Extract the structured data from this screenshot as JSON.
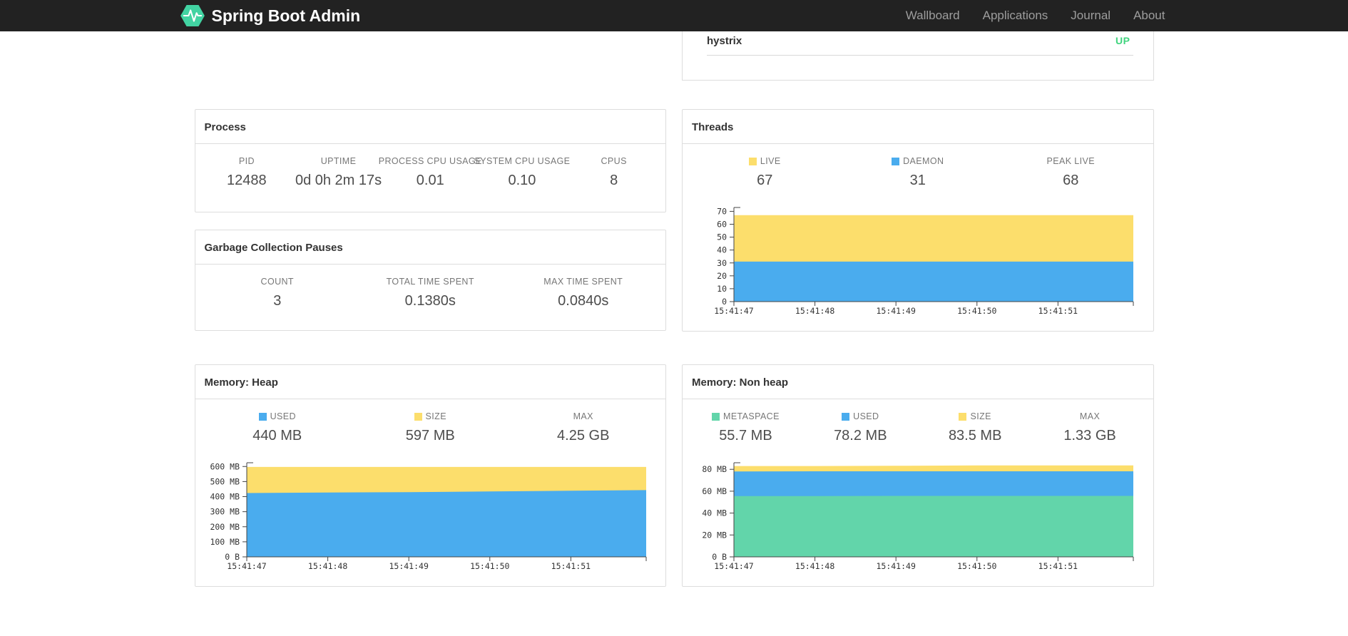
{
  "navbar": {
    "brand": "Spring Boot Admin",
    "items": [
      {
        "label": "Wallboard"
      },
      {
        "label": "Applications"
      },
      {
        "label": "Journal"
      },
      {
        "label": "About"
      }
    ]
  },
  "status_card": {
    "application": "hystrix",
    "status": "UP",
    "status_color": "#40d47e"
  },
  "cards": {
    "process": {
      "title": "Process",
      "stats": [
        {
          "label": "PID",
          "value": "12488"
        },
        {
          "label": "UPTIME",
          "value": "0d 0h 2m 17s"
        },
        {
          "label": "PROCESS CPU USAGE",
          "value": "0.01"
        },
        {
          "label": "SYSTEM CPU USAGE",
          "value": "0.10"
        },
        {
          "label": "CPUS",
          "value": "8"
        }
      ]
    },
    "gc": {
      "title": "Garbage Collection Pauses",
      "stats": [
        {
          "label": "COUNT",
          "value": "3"
        },
        {
          "label": "TOTAL TIME SPENT",
          "value": "0.1380s"
        },
        {
          "label": "MAX TIME SPENT",
          "value": "0.0840s"
        }
      ]
    },
    "threads": {
      "title": "Threads",
      "stats": [
        {
          "label": "LIVE",
          "value": "67",
          "color": "#fcde6c"
        },
        {
          "label": "DAEMON",
          "value": "31",
          "color": "#4aacee"
        },
        {
          "label": "PEAK LIVE",
          "value": "68"
        }
      ]
    },
    "heap": {
      "title": "Memory: Heap",
      "stats": [
        {
          "label": "USED",
          "value": "440 MB",
          "color": "#4aacee"
        },
        {
          "label": "SIZE",
          "value": "597 MB",
          "color": "#fcde6c"
        },
        {
          "label": "MAX",
          "value": "4.25 GB"
        }
      ]
    },
    "nonheap": {
      "title": "Memory: Non heap",
      "stats": [
        {
          "label": "METASPACE",
          "value": "55.7 MB",
          "color": "#62d5aa"
        },
        {
          "label": "USED",
          "value": "78.2 MB",
          "color": "#4aacee"
        },
        {
          "label": "SIZE",
          "value": "83.5 MB",
          "color": "#fcde6c"
        },
        {
          "label": "MAX",
          "value": "1.33 GB"
        }
      ]
    }
  },
  "chart_data": [
    {
      "id": "threads",
      "type": "area",
      "title": "Threads",
      "x_labels": [
        "15:41:47",
        "15:41:48",
        "15:41:49",
        "15:41:50",
        "15:41:51"
      ],
      "x_points": [
        0,
        1,
        2,
        3,
        4,
        4.93
      ],
      "x_max": 4.93,
      "y_max": 73,
      "grid": false,
      "legend_position": "top",
      "y_ticks": [
        {
          "v": 0,
          "label": "0"
        },
        {
          "v": 10,
          "label": "10"
        },
        {
          "v": 20,
          "label": "20"
        },
        {
          "v": 30,
          "label": "30"
        },
        {
          "v": 40,
          "label": "40"
        },
        {
          "v": 50,
          "label": "50"
        },
        {
          "v": 60,
          "label": "60"
        },
        {
          "v": 70,
          "label": "70"
        }
      ],
      "series": [
        {
          "name": "LIVE",
          "color": "#fcde6c",
          "values": [
            67,
            67,
            67,
            67,
            67,
            67
          ]
        },
        {
          "name": "DAEMON",
          "color": "#4aacee",
          "values": [
            31,
            31,
            31,
            31,
            31,
            31
          ]
        }
      ]
    },
    {
      "id": "heap-memory",
      "type": "area",
      "title": "Memory: Heap",
      "x_labels": [
        "15:41:47",
        "15:41:48",
        "15:41:49",
        "15:41:50",
        "15:41:51"
      ],
      "x_points": [
        0,
        1,
        2,
        3,
        4,
        4.93
      ],
      "x_max": 4.93,
      "y_max": 625,
      "grid": false,
      "legend_position": "top",
      "y_ticks": [
        {
          "v": 0,
          "label": "0 B"
        },
        {
          "v": 100,
          "label": "100 MB"
        },
        {
          "v": 200,
          "label": "200 MB"
        },
        {
          "v": 300,
          "label": "300 MB"
        },
        {
          "v": 400,
          "label": "400 MB"
        },
        {
          "v": 500,
          "label": "500 MB"
        },
        {
          "v": 600,
          "label": "600 MB"
        }
      ],
      "series": [
        {
          "name": "SIZE",
          "color": "#fcde6c",
          "values": [
            597,
            597,
            597,
            597,
            597,
            597
          ]
        },
        {
          "name": "USED",
          "color": "#4aacee",
          "values": [
            424,
            427,
            430,
            434,
            439,
            443
          ]
        }
      ]
    },
    {
      "id": "nonheap-memory",
      "type": "area",
      "title": "Memory: Non heap",
      "x_labels": [
        "15:41:47",
        "15:41:48",
        "15:41:49",
        "15:41:50",
        "15:41:51"
      ],
      "x_points": [
        0,
        1,
        2,
        3,
        4,
        4.93
      ],
      "x_max": 4.93,
      "y_max": 86,
      "grid": false,
      "legend_position": "top",
      "y_ticks": [
        {
          "v": 0,
          "label": "0 B"
        },
        {
          "v": 20,
          "label": "20 MB"
        },
        {
          "v": 40,
          "label": "40 MB"
        },
        {
          "v": 60,
          "label": "60 MB"
        },
        {
          "v": 80,
          "label": "80 MB"
        }
      ],
      "series": [
        {
          "name": "SIZE",
          "color": "#fcde6c",
          "values": [
            83,
            83,
            83.2,
            83.5,
            83.5,
            83.5
          ]
        },
        {
          "name": "USED",
          "color": "#4aacee",
          "values": [
            78,
            78.2,
            78.2,
            78.2,
            78.2,
            78.2
          ]
        },
        {
          "name": "METASPACE",
          "color": "#62d5aa",
          "values": [
            55.5,
            55.6,
            55.7,
            55.7,
            55.7,
            55.7
          ]
        }
      ]
    }
  ]
}
